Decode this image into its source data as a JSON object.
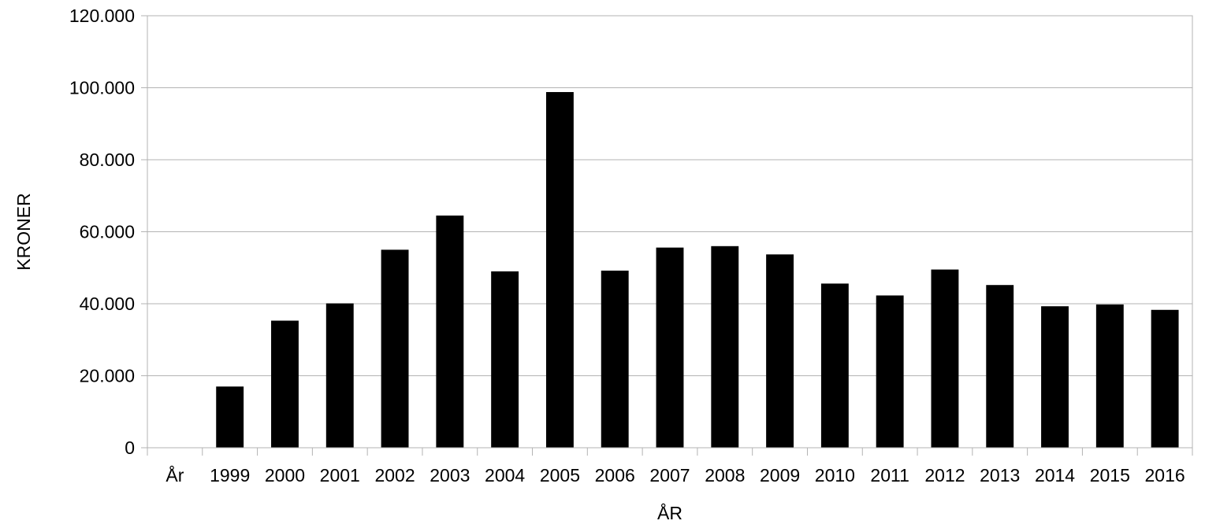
{
  "chart_data": {
    "type": "bar",
    "title": "",
    "xlabel": "ÅR",
    "ylabel": "KRONER",
    "categories": [
      "År",
      "1999",
      "2000",
      "2001",
      "2002",
      "2003",
      "2004",
      "2005",
      "2006",
      "2007",
      "2008",
      "2009",
      "2010",
      "2011",
      "2012",
      "2013",
      "2014",
      "2015",
      "2016"
    ],
    "values": [
      0,
      17000,
      35300,
      40100,
      55000,
      64500,
      49000,
      98800,
      49200,
      55600,
      56000,
      53700,
      45600,
      42300,
      49500,
      45200,
      39300,
      39800,
      38300
    ],
    "ylim": [
      0,
      120000
    ],
    "yticks": [
      0,
      20000,
      40000,
      60000,
      80000,
      100000,
      120000
    ],
    "ytick_labels": [
      "0",
      "20.000",
      "40.000",
      "60.000",
      "80.000",
      "100.000",
      "120.000"
    ],
    "grid": true,
    "legend": "none",
    "bar_color": "#000000",
    "grid_color": "#b3b3b3",
    "axis_color": "#b3b3b3"
  }
}
